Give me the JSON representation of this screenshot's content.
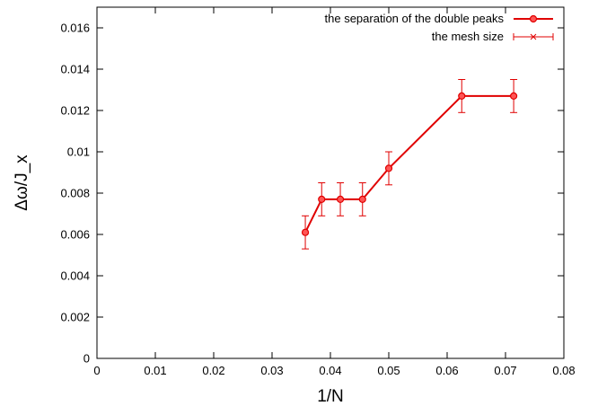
{
  "chart_data": {
    "type": "line",
    "xlabel": "1/N",
    "ylabel": "Δω/J_x",
    "xlim": [
      0,
      0.08
    ],
    "ylim": [
      0,
      0.017
    ],
    "x_ticks": [
      "0",
      "0.01",
      "0.02",
      "0.03",
      "0.04",
      "0.05",
      "0.06",
      "0.07",
      "0.08"
    ],
    "y_ticks": [
      "0",
      "0.002",
      "0.004",
      "0.006",
      "0.008",
      "0.01",
      "0.012",
      "0.014",
      "0.016"
    ],
    "grid": false,
    "legend_position": "top-right",
    "series": [
      {
        "name": "the separation of the double peaks",
        "color": "#e00000",
        "marker": "circle",
        "x": [
          0.0357,
          0.0385,
          0.0417,
          0.0455,
          0.05,
          0.0625,
          0.0714
        ],
        "y": [
          0.0061,
          0.0077,
          0.0077,
          0.0077,
          0.0092,
          0.0127,
          0.0127
        ]
      },
      {
        "name": "the mesh size",
        "color": "#e00000",
        "marker": "cross",
        "style": "errorbars",
        "x": [
          0.0357,
          0.0385,
          0.0417,
          0.0455,
          0.05,
          0.0625,
          0.0714
        ],
        "y": [
          0.0061,
          0.0077,
          0.0077,
          0.0077,
          0.0092,
          0.0127,
          0.0127
        ],
        "error": [
          0.0008,
          0.0008,
          0.0008,
          0.0008,
          0.0008,
          0.0008,
          0.0008
        ]
      }
    ]
  }
}
